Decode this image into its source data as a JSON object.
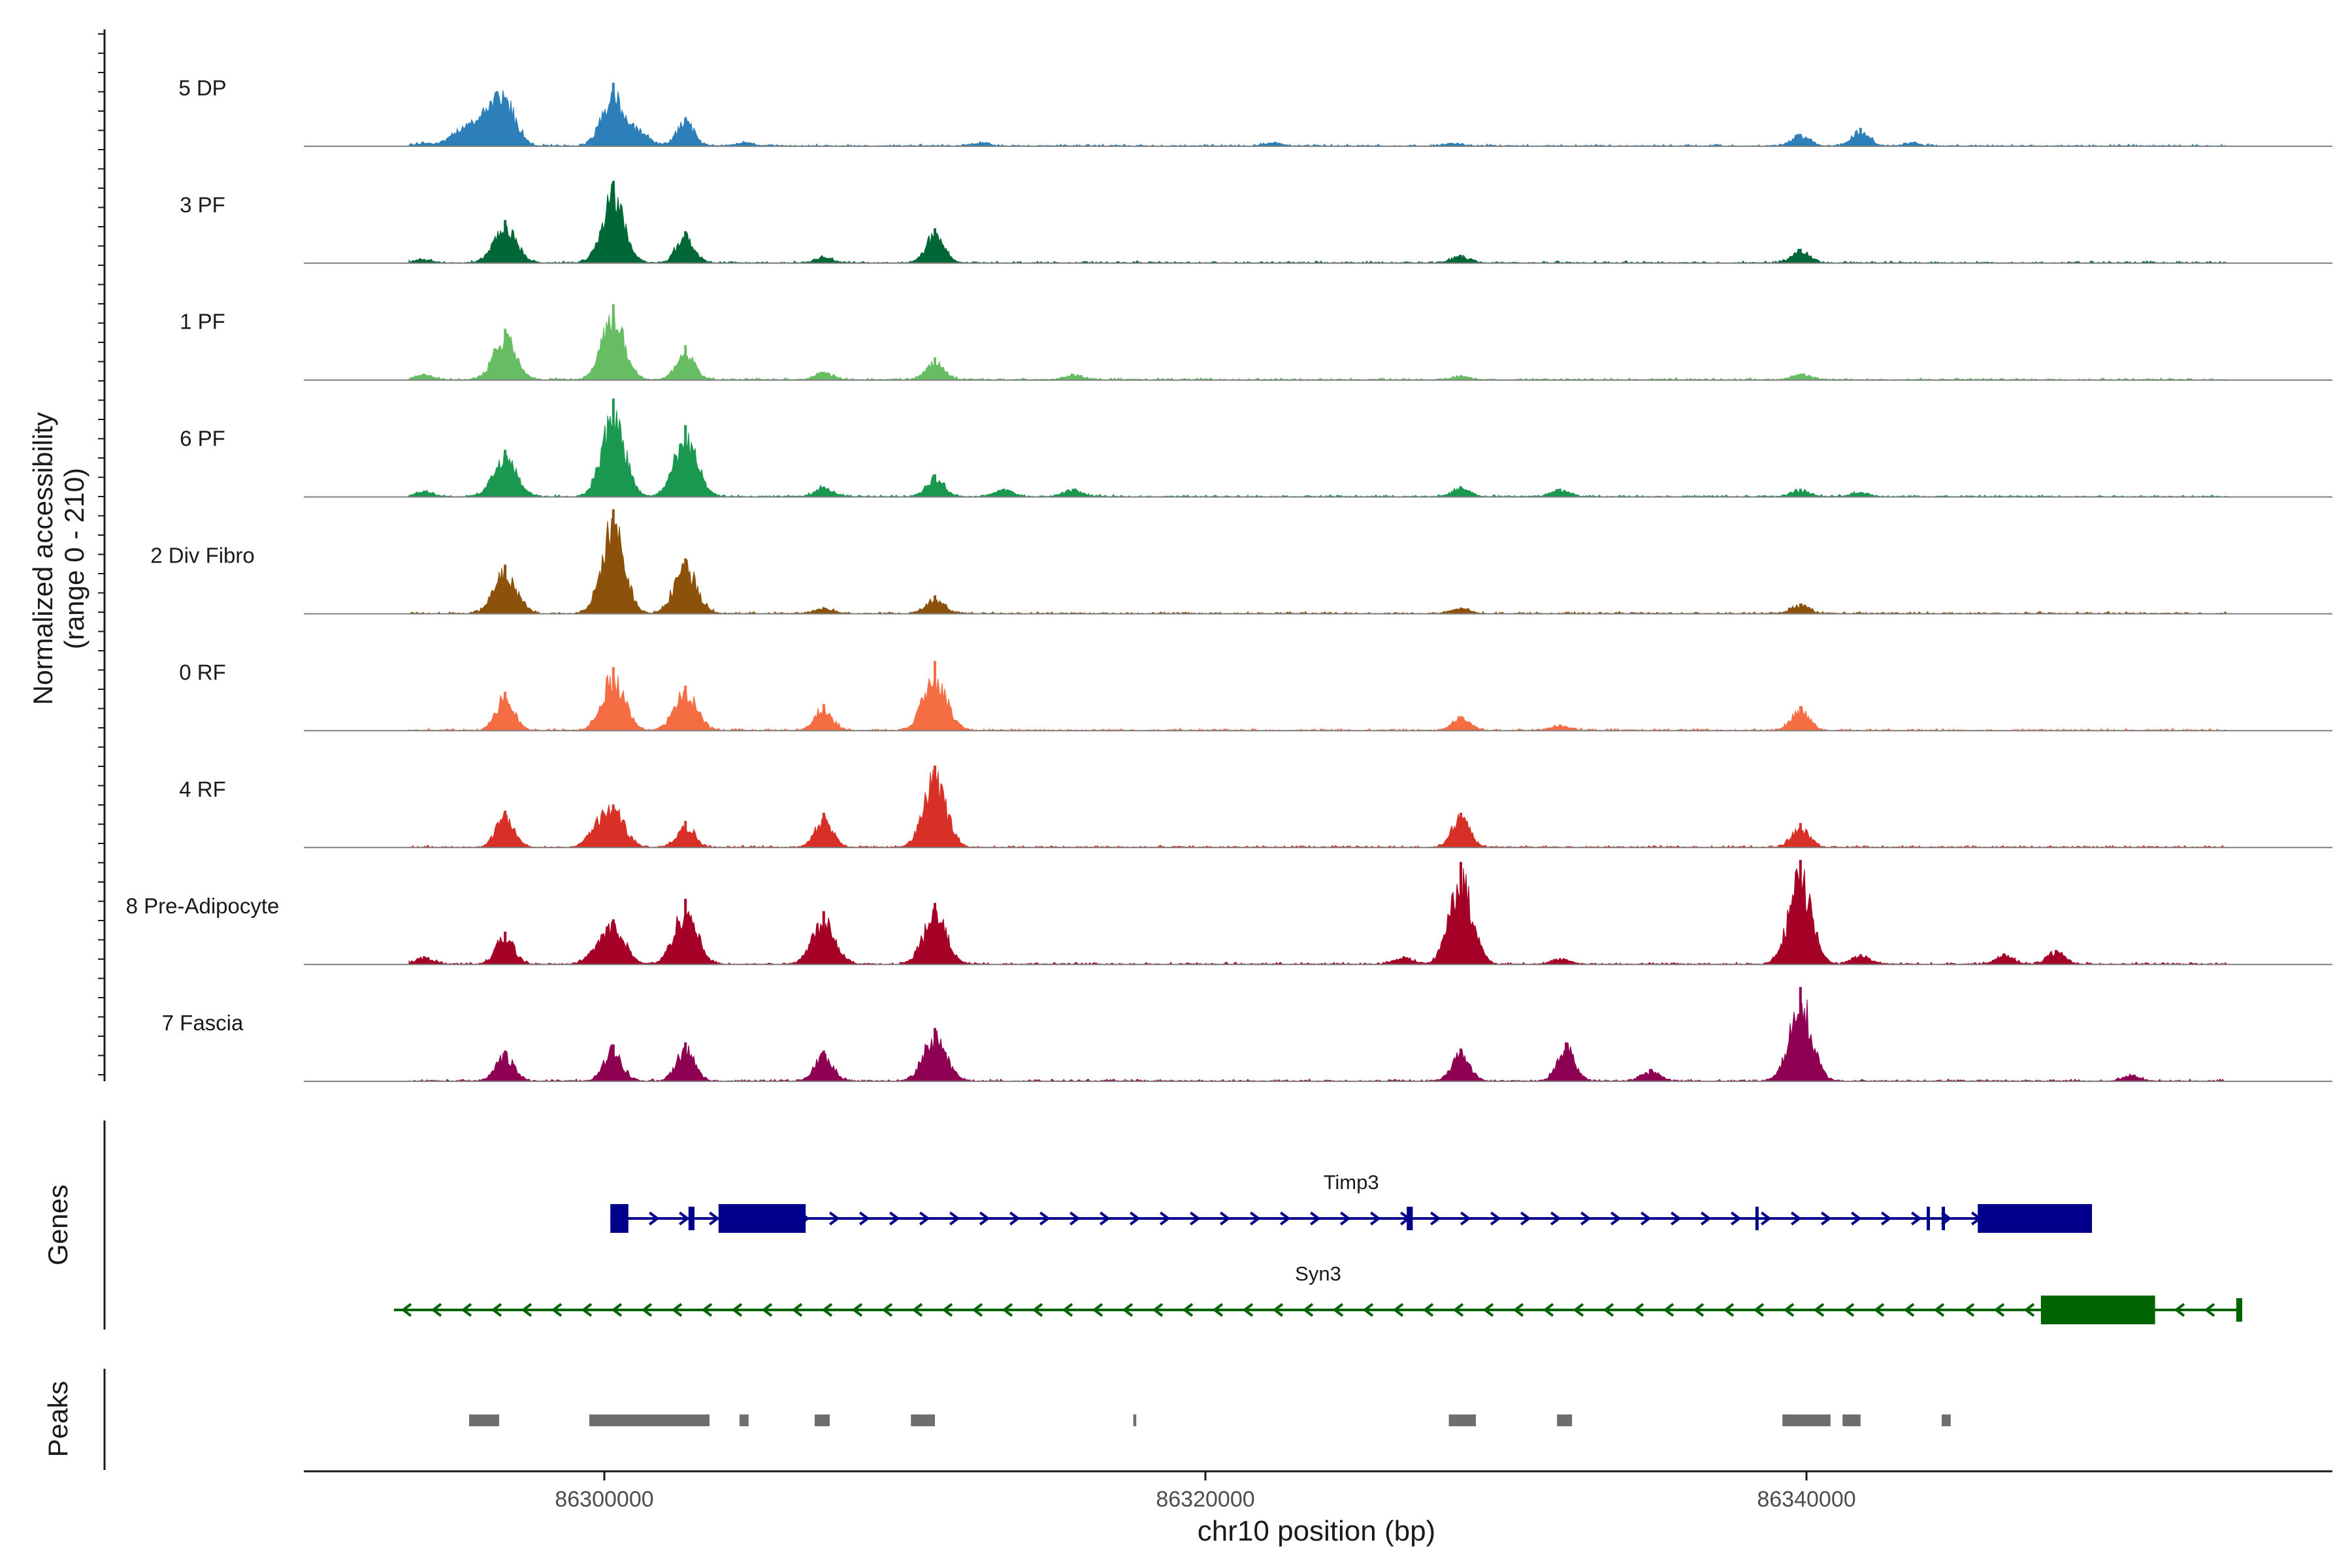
{
  "chart_data": {
    "type": "coverage",
    "chromosome": "chr10",
    "xlabel": "chr10 position (bp)",
    "xlim": [
      86290000,
      86357500
    ],
    "x_ticks": [
      86300000,
      86320000,
      86340000
    ],
    "x_tick_labels": [
      "86300000",
      "86320000",
      "86340000"
    ],
    "coverage_ylabel": [
      "Normalized accessibility",
      "(range 0 - 210)"
    ],
    "y_range": [
      0,
      210
    ],
    "signal_start": 86293500,
    "signal_end": 86354000,
    "tracks": [
      {
        "name": "5 DP",
        "color": "#2c7fb8",
        "peaks": [
          [
            86294000,
            8
          ],
          [
            86295000,
            30
          ],
          [
            86295600,
            55
          ],
          [
            86296200,
            75
          ],
          [
            86296700,
            120
          ],
          [
            86300300,
            155
          ],
          [
            86301200,
            40
          ],
          [
            86302700,
            70
          ],
          [
            86304700,
            10
          ],
          [
            86312500,
            8
          ],
          [
            86322200,
            8
          ],
          [
            86328200,
            8
          ],
          [
            86339800,
            30
          ],
          [
            86341800,
            45
          ],
          [
            86343500,
            8
          ]
        ]
      },
      {
        "name": "3 PF",
        "color": "#006837",
        "peaks": [
          [
            86294000,
            10
          ],
          [
            86296700,
            105
          ],
          [
            86300300,
            200
          ],
          [
            86302700,
            78
          ],
          [
            86307300,
            15
          ],
          [
            86311000,
            85
          ],
          [
            86328500,
            20
          ],
          [
            86339800,
            35
          ]
        ]
      },
      {
        "name": "1 PF",
        "color": "#66bd63",
        "peaks": [
          [
            86294000,
            15
          ],
          [
            86296700,
            125
          ],
          [
            86300300,
            185
          ],
          [
            86302700,
            85
          ],
          [
            86307300,
            20
          ],
          [
            86311000,
            55
          ],
          [
            86315600,
            15
          ],
          [
            86328500,
            10
          ],
          [
            86339800,
            15
          ]
        ]
      },
      {
        "name": "6 PF",
        "color": "#1a9850",
        "peaks": [
          [
            86294000,
            15
          ],
          [
            86296700,
            115
          ],
          [
            86300300,
            240
          ],
          [
            86302700,
            175
          ],
          [
            86307300,
            25
          ],
          [
            86311000,
            55
          ],
          [
            86313300,
            20
          ],
          [
            86315600,
            20
          ],
          [
            86328500,
            25
          ],
          [
            86331800,
            20
          ],
          [
            86339800,
            20
          ],
          [
            86341800,
            12
          ]
        ]
      },
      {
        "name": "2 Div Fibro",
        "color": "#8c510a",
        "peaks": [
          [
            86296700,
            120
          ],
          [
            86300300,
            255
          ],
          [
            86302700,
            135
          ],
          [
            86307300,
            15
          ],
          [
            86311000,
            45
          ],
          [
            86328500,
            15
          ],
          [
            86339800,
            25
          ]
        ]
      },
      {
        "name": "0 RF",
        "color": "#f46d43",
        "peaks": [
          [
            86296700,
            95
          ],
          [
            86300300,
            155
          ],
          [
            86302700,
            110
          ],
          [
            86307300,
            65
          ],
          [
            86311000,
            170
          ],
          [
            86328500,
            35
          ],
          [
            86331800,
            15
          ],
          [
            86339800,
            60
          ]
        ]
      },
      {
        "name": "4 RF",
        "color": "#d73027",
        "peaks": [
          [
            86296700,
            90
          ],
          [
            86299700,
            40
          ],
          [
            86300300,
            105
          ],
          [
            86302700,
            65
          ],
          [
            86307300,
            85
          ],
          [
            86311000,
            200
          ],
          [
            86328500,
            85
          ],
          [
            86339800,
            60
          ]
        ]
      },
      {
        "name": "8 Pre-Adipocyte",
        "color": "#a50026",
        "peaks": [
          [
            86294000,
            20
          ],
          [
            86296700,
            80
          ],
          [
            86299700,
            25
          ],
          [
            86300300,
            110
          ],
          [
            86302700,
            160
          ],
          [
            86307300,
            130
          ],
          [
            86311000,
            150
          ],
          [
            86326600,
            20
          ],
          [
            86328500,
            250
          ],
          [
            86331800,
            15
          ],
          [
            86339800,
            255
          ],
          [
            86341800,
            25
          ],
          [
            86346600,
            25
          ],
          [
            86348300,
            35
          ]
        ]
      },
      {
        "name": "7 Fascia",
        "color": "#8e0152",
        "peaks": [
          [
            86296700,
            75
          ],
          [
            86300300,
            90
          ],
          [
            86302700,
            95
          ],
          [
            86307300,
            75
          ],
          [
            86311000,
            130
          ],
          [
            86328500,
            80
          ],
          [
            86332000,
            95
          ],
          [
            86334800,
            30
          ],
          [
            86339800,
            230
          ],
          [
            86350800,
            15
          ]
        ]
      }
    ],
    "genes": [
      {
        "name": "Timp3",
        "color": "#00008b",
        "start": 86300200,
        "end": 86349500,
        "strand": "+",
        "exons": [
          [
            86300200,
            86300800
          ],
          [
            86302800,
            86303000
          ],
          [
            86303800,
            86306700
          ],
          [
            86326700,
            86326900
          ],
          [
            86338300,
            86338400
          ],
          [
            86344000,
            86344100
          ],
          [
            86344500,
            86344600
          ],
          [
            86345700,
            86349500
          ]
        ]
      },
      {
        "name": "Syn3",
        "color": "#006400",
        "start": 86293000,
        "end": 86354500,
        "strand": "-",
        "exons": [
          [
            86347800,
            86351600
          ],
          [
            86354300,
            86354500
          ]
        ]
      }
    ],
    "peaks_ranges": [
      [
        86295500,
        86296500
      ],
      [
        86299500,
        86303500
      ],
      [
        86304500,
        86304800
      ],
      [
        86307000,
        86307500
      ],
      [
        86310200,
        86311000
      ],
      [
        86317600,
        86317700
      ],
      [
        86328100,
        86329000
      ],
      [
        86331700,
        86332200
      ],
      [
        86339200,
        86340800
      ],
      [
        86341200,
        86341800
      ],
      [
        86344500,
        86344800
      ]
    ],
    "panel_labels": {
      "genes": "Genes",
      "peaks": "Peaks"
    }
  }
}
